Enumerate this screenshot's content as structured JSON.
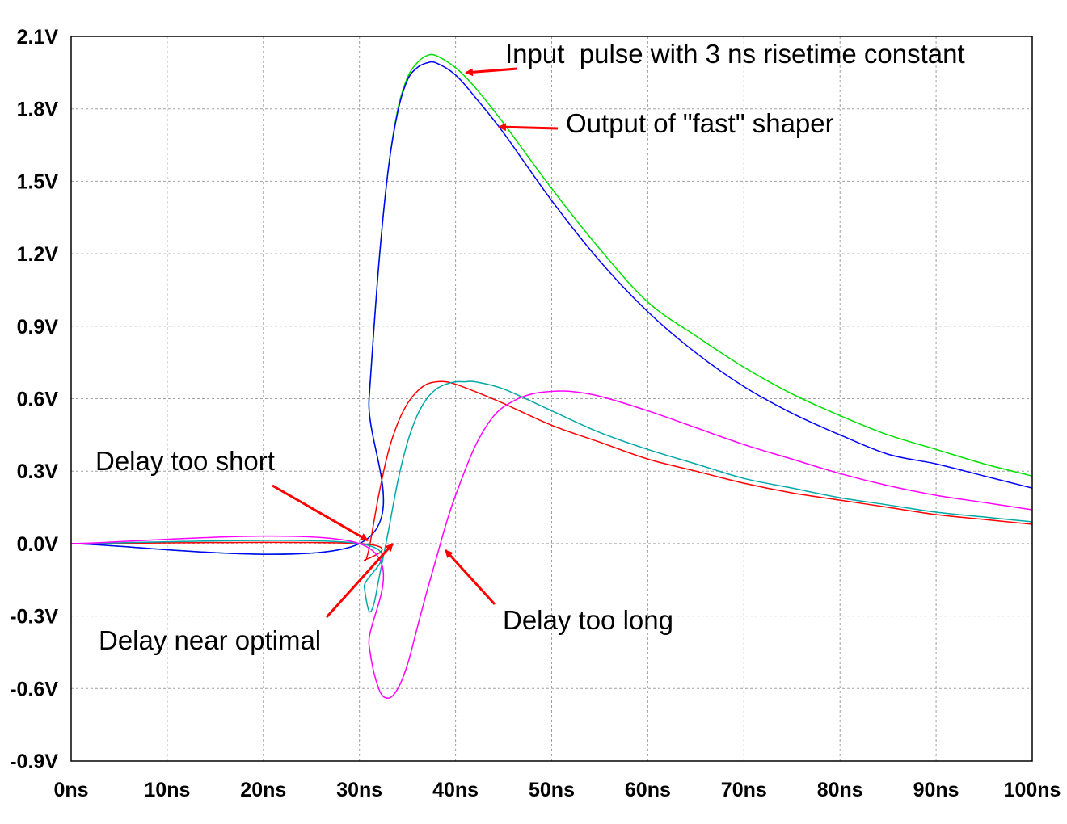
{
  "chart_data": {
    "type": "line",
    "xlabel": "",
    "ylabel": "",
    "xlim": [
      0,
      100
    ],
    "ylim": [
      -0.9,
      2.1
    ],
    "x_ticks": [
      0,
      10,
      20,
      30,
      40,
      50,
      60,
      70,
      80,
      90,
      100
    ],
    "x_tick_labels": [
      "0ns",
      "10ns",
      "20ns",
      "30ns",
      "40ns",
      "50ns",
      "60ns",
      "70ns",
      "80ns",
      "90ns",
      "100ns"
    ],
    "y_ticks": [
      2.1,
      1.8,
      1.5,
      1.2,
      0.9,
      0.6,
      0.3,
      0.0,
      -0.3,
      -0.6,
      -0.9
    ],
    "y_tick_labels": [
      "2.1V",
      "1.8V",
      "1.5V",
      "1.2V",
      "0.9V",
      "0.6V",
      "0.3V",
      "0.0V",
      "-0.3V",
      "-0.6V",
      "-0.9V"
    ],
    "grid": true,
    "series": [
      {
        "color": "#00e000",
        "x": [
          0,
          30,
          31,
          32,
          33,
          34,
          35,
          36,
          37,
          38,
          40,
          42,
          45,
          50,
          55,
          60,
          65,
          70,
          75,
          80,
          85,
          90,
          95,
          100
        ],
        "values": [
          0,
          0,
          0.6,
          1.15,
          1.55,
          1.8,
          1.93,
          1.99,
          2.02,
          2.02,
          1.97,
          1.89,
          1.74,
          1.47,
          1.22,
          1.0,
          0.86,
          0.73,
          0.62,
          0.53,
          0.45,
          0.39,
          0.33,
          0.28
        ]
      },
      {
        "color": "#0000ff",
        "x": [
          0,
          30,
          31,
          32,
          33,
          34,
          35,
          36,
          37,
          38,
          40,
          42,
          45,
          50,
          55,
          60,
          65,
          70,
          75,
          80,
          85,
          90,
          95,
          100
        ],
        "values": [
          0,
          0,
          0.6,
          1.15,
          1.55,
          1.79,
          1.92,
          1.97,
          1.99,
          1.99,
          1.94,
          1.85,
          1.7,
          1.42,
          1.17,
          0.96,
          0.79,
          0.65,
          0.54,
          0.45,
          0.37,
          0.33,
          0.28,
          0.23
        ]
      },
      {
        "color": "#ff0000",
        "x": [
          0,
          30,
          30.5,
          31,
          32,
          33,
          34,
          35,
          36,
          37,
          38,
          39,
          40,
          42,
          45,
          50,
          55,
          60,
          65,
          70,
          75,
          80,
          85,
          90,
          95,
          100
        ],
        "values": [
          0,
          0,
          -0.07,
          -0.02,
          0.2,
          0.38,
          0.5,
          0.58,
          0.63,
          0.66,
          0.67,
          0.67,
          0.66,
          0.63,
          0.58,
          0.49,
          0.42,
          0.35,
          0.3,
          0.25,
          0.21,
          0.18,
          0.15,
          0.12,
          0.1,
          0.08
        ]
      },
      {
        "color": "#00a8a8",
        "x": [
          0,
          30,
          30.5,
          31,
          31.5,
          32,
          33,
          34,
          35,
          36,
          37,
          38,
          39,
          40,
          41,
          42,
          45,
          50,
          55,
          60,
          65,
          70,
          75,
          80,
          85,
          90,
          95,
          100
        ],
        "values": [
          0,
          0,
          -0.18,
          -0.28,
          -0.25,
          -0.15,
          0.05,
          0.26,
          0.42,
          0.53,
          0.6,
          0.64,
          0.66,
          0.67,
          0.67,
          0.67,
          0.64,
          0.55,
          0.46,
          0.39,
          0.33,
          0.27,
          0.23,
          0.19,
          0.16,
          0.13,
          0.11,
          0.09
        ]
      },
      {
        "color": "#ff00ff",
        "x": [
          0,
          30,
          31,
          32,
          33,
          34,
          35,
          36,
          37,
          38,
          39,
          40,
          42,
          44,
          46,
          48,
          50,
          52,
          55,
          60,
          65,
          70,
          75,
          80,
          85,
          90,
          95,
          100
        ],
        "values": [
          0,
          0,
          -0.42,
          -0.6,
          -0.64,
          -0.6,
          -0.5,
          -0.35,
          -0.2,
          -0.06,
          0.08,
          0.2,
          0.4,
          0.53,
          0.59,
          0.62,
          0.63,
          0.63,
          0.61,
          0.55,
          0.48,
          0.41,
          0.35,
          0.29,
          0.24,
          0.2,
          0.17,
          0.14
        ]
      }
    ],
    "annotations": [
      {
        "name": "input-pulse-label",
        "text": "Input  pulse with 3 ns risetime constant"
      },
      {
        "name": "fast-shaper-label",
        "text": "Output of \"fast\" shaper"
      },
      {
        "name": "delay-short-label",
        "text": "Delay too short"
      },
      {
        "name": "delay-optimal-label",
        "text": "Delay near optimal"
      },
      {
        "name": "delay-long-label",
        "text": "Delay too long"
      }
    ],
    "arrow_color": "#ff0000"
  }
}
